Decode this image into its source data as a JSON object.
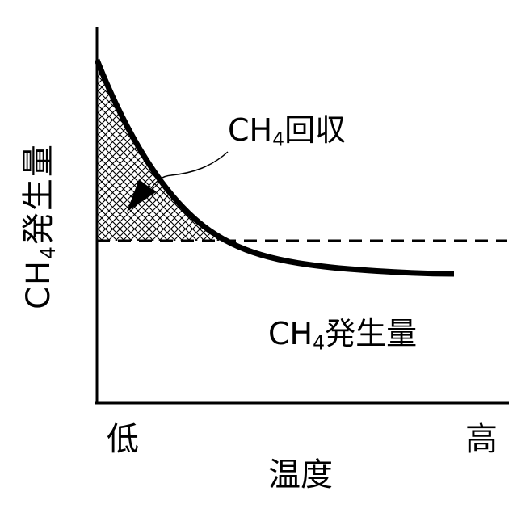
{
  "labels": {
    "y_axis_prefix": "CH",
    "y_axis_sub": "4",
    "y_axis_suffix": "発生量",
    "x_axis": "温度",
    "tick_low": "低",
    "tick_high": "高",
    "recovery_prefix": "CH",
    "recovery_sub": "4",
    "recovery_suffix": "回収",
    "generation_prefix": "CH",
    "generation_sub": "4",
    "generation_suffix": "発生量"
  },
  "colors": {
    "ink": "#000000",
    "background": "#ffffff"
  },
  "legend": "none",
  "grid": false
}
